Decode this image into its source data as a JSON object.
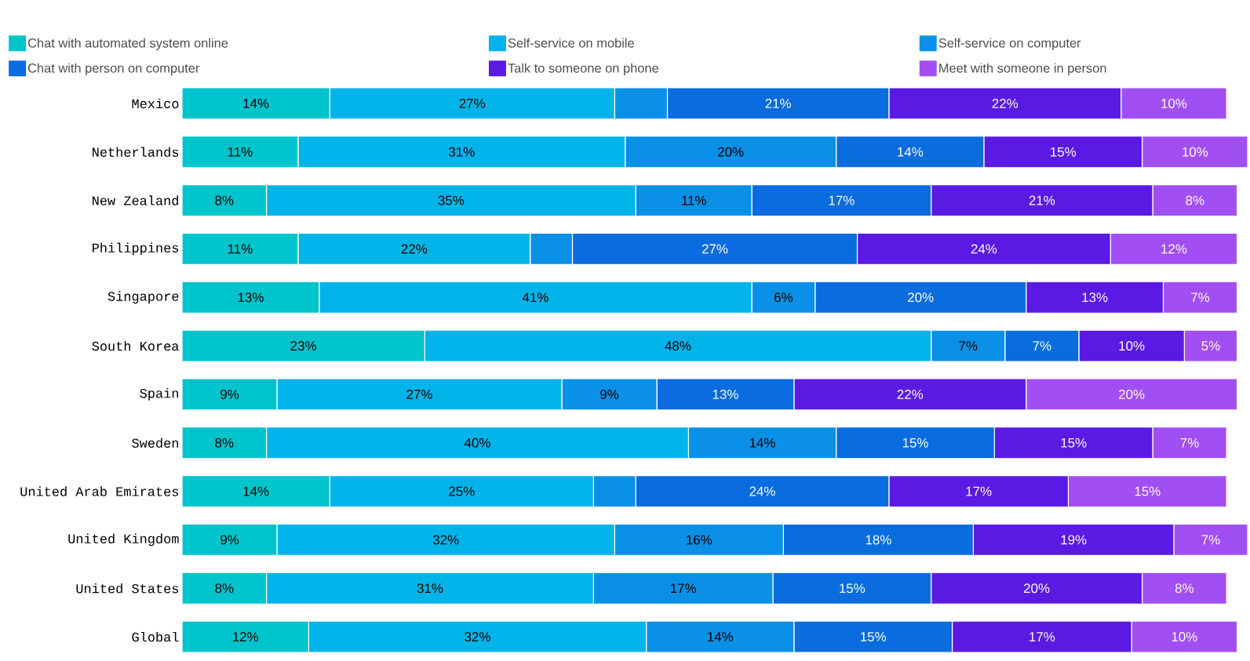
{
  "chart_data": {
    "type": "bar",
    "orientation": "horizontal",
    "stacked": true,
    "legend": "top",
    "categories": [
      "Mexico",
      "Netherlands",
      "New Zealand",
      "Philippines",
      "Singapore",
      "South Korea",
      "Spain",
      "Sweden",
      "United Arab Emirates",
      "United Kingdom",
      "United States",
      "Global"
    ],
    "series": [
      {
        "name": "Chat with automated system online",
        "color": "#00c4cc",
        "values": [
          14,
          11,
          8,
          11,
          13,
          23,
          9,
          8,
          14,
          9,
          8,
          12
        ],
        "value_labels": [
          "14%",
          "11%",
          "8%",
          "11%",
          "13%",
          "23%",
          "9%",
          "8%",
          "14%",
          "9%",
          "8%",
          "12%"
        ]
      },
      {
        "name": "Self-service on mobile",
        "color": "#00b4ea",
        "values": [
          27,
          31,
          35,
          22,
          41,
          48,
          27,
          40,
          25,
          32,
          31,
          32
        ],
        "value_labels": [
          "27%",
          "31%",
          "35%",
          "22%",
          "41%",
          "48%",
          "27%",
          "40%",
          "25%",
          "32%",
          "31%",
          "32%"
        ]
      },
      {
        "name": "Self-service on computer",
        "color": "#0a90e6",
        "values": [
          5,
          20,
          11,
          4,
          6,
          7,
          9,
          14,
          4,
          16,
          17,
          14
        ],
        "value_labels": [
          null,
          "20%",
          "11%",
          null,
          "6%",
          "7%",
          "9%",
          "14%",
          null,
          "16%",
          "17%",
          "14%"
        ]
      },
      {
        "name": "Chat with person on computer",
        "color": "#0a6cde",
        "values": [
          21,
          14,
          17,
          27,
          20,
          7,
          13,
          15,
          24,
          18,
          15,
          15
        ],
        "value_labels": [
          "21%",
          "14%",
          "17%",
          "27%",
          "20%",
          "7%",
          "13%",
          "15%",
          "24%",
          "18%",
          "15%",
          "15%"
        ]
      },
      {
        "name": "Talk to someone on phone",
        "color": "#5b1ae3",
        "values": [
          22,
          15,
          21,
          24,
          13,
          10,
          22,
          15,
          17,
          19,
          20,
          17
        ],
        "value_labels": [
          "22%",
          "15%",
          "21%",
          "24%",
          "13%",
          "10%",
          "22%",
          "15%",
          "17%",
          "19%",
          "20%",
          "17%"
        ]
      },
      {
        "name": "Meet with someone in person",
        "color": "#a14ff2",
        "values": [
          10,
          10,
          8,
          12,
          7,
          5,
          20,
          7,
          15,
          7,
          8,
          10
        ],
        "value_labels": [
          "10%",
          "10%",
          "8%",
          "12%",
          "7%",
          "5%",
          "20%",
          "7%",
          "15%",
          "7%",
          "8%",
          "10%"
        ]
      }
    ]
  }
}
